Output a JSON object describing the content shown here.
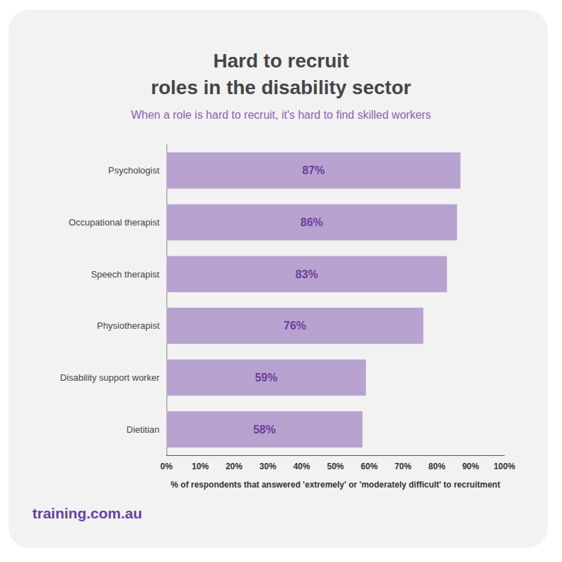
{
  "chart_data": {
    "type": "bar",
    "title": "Hard to recruit\nroles in the disability sector",
    "subtitle": "When a role is hard to recruit, it's hard to find skilled workers",
    "xlabel": "% of respondents that answered 'extremely' or 'moderately difficult' to recruitment",
    "annotations": [
      "training.com.au"
    ],
    "orientation": "horizontal",
    "categories": [
      "Psychologist",
      "Occupational therapist",
      "Speech therapist",
      "Physiotherapist",
      "Disability support worker",
      "Dietitian"
    ],
    "values": [
      87,
      86,
      83,
      76,
      59,
      58
    ],
    "value_labels": [
      "87%",
      "86%",
      "83%",
      "76%",
      "59%",
      "58%"
    ],
    "data_labels": true,
    "color": "#b8a2cf",
    "xlim": [
      0,
      100
    ],
    "xticks": [
      {
        "value": 0,
        "label": "0%"
      },
      {
        "value": 10,
        "label": "10%"
      },
      {
        "value": 20,
        "label": "20%"
      },
      {
        "value": 30,
        "label": "30%"
      },
      {
        "value": 40,
        "label": "40%"
      },
      {
        "value": 50,
        "label": "50%"
      },
      {
        "value": 60,
        "label": "60%"
      },
      {
        "value": 70,
        "label": "70%"
      },
      {
        "value": 80,
        "label": "80%"
      },
      {
        "value": 90,
        "label": "90%"
      },
      {
        "value": 100,
        "label": "100%"
      }
    ],
    "grid": false
  }
}
